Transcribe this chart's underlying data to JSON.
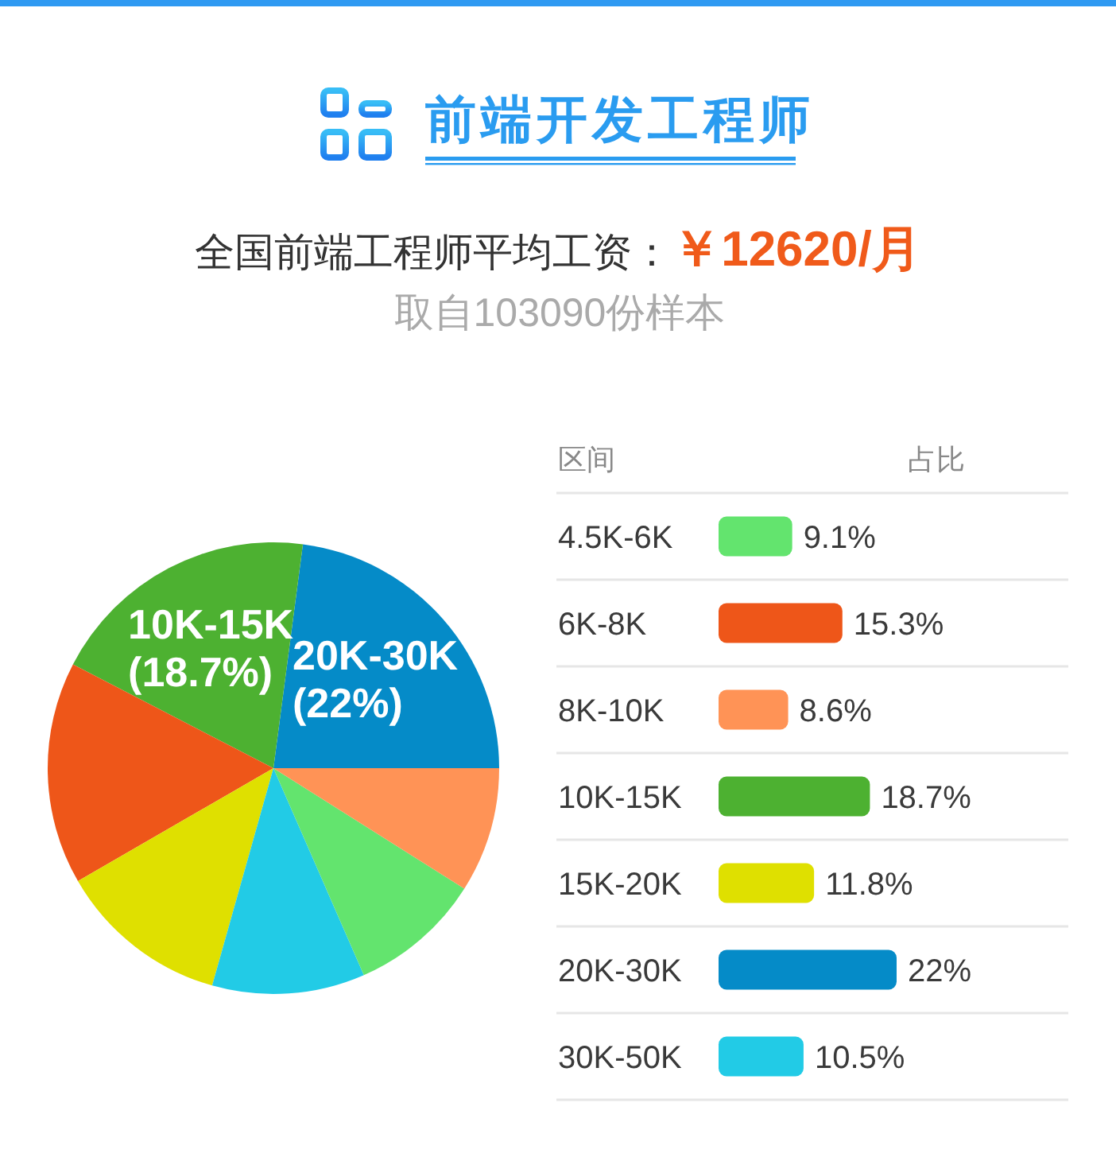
{
  "chart_data": [
    {
      "type": "pie",
      "title": "前端开发工程师",
      "subtitle": "全国前端工程师平均工资：￥12620/月",
      "annotations": [
        "取自103090份样本"
      ],
      "categories": [
        "20K-30K",
        "10K-15K",
        null,
        null,
        null,
        null,
        null
      ],
      "values": [
        22,
        18.7,
        15.3,
        11.8,
        10.5,
        9.1,
        8.6
      ],
      "value_labels": [
        "(22%)",
        "(18.7%)",
        null,
        null,
        null,
        null,
        null
      ],
      "colors": [
        "#058bc8",
        "#4db131",
        "#ee5619",
        "#dfe000",
        "#22cbe6",
        "#63e46e",
        "#ff9356"
      ]
    },
    {
      "type": "bar",
      "orientation": "horizontal",
      "ylabel": "区间",
      "xlabel": "占比",
      "categories": [
        "4.5K-6K",
        "6K-8K",
        "8K-10K",
        "10K-15K",
        "15K-20K",
        "20K-30K",
        "30K-50K"
      ],
      "values": [
        9.1,
        15.3,
        8.6,
        18.7,
        11.8,
        22,
        10.5
      ],
      "colors": [
        "#63e46e",
        "#ee5619",
        "#ff9356",
        "#4db131",
        "#dfe000",
        "#058bc8",
        "#22cbe6"
      ],
      "value_labels": [
        "9.1%",
        "15.3%",
        "8.6%",
        "18.7%",
        "11.8%",
        "22%",
        "10.5%"
      ],
      "xlim": [
        0,
        22
      ],
      "tick_labels": "y",
      "grid": "y"
    }
  ]
}
